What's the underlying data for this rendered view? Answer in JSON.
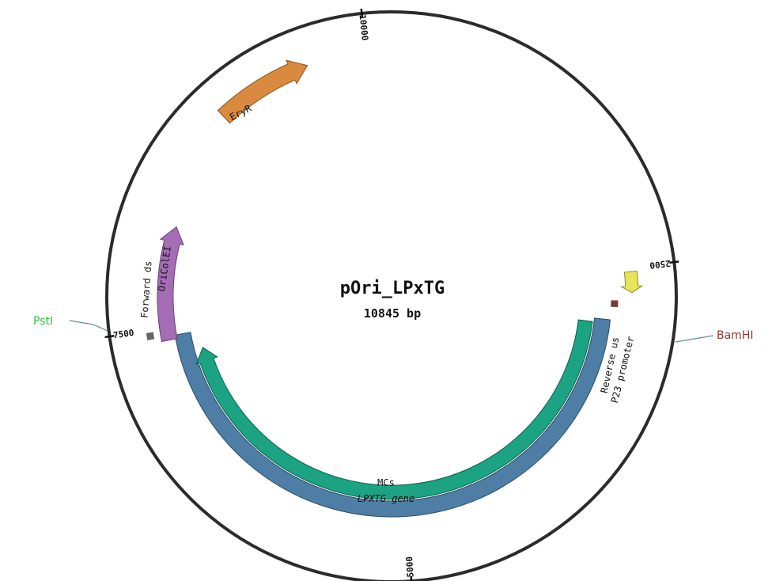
{
  "plasmid": {
    "name": "pOri_LPxTG",
    "size_label": "10845 bp",
    "length_bp": 10845
  },
  "ticks": [
    {
      "label": "2500",
      "bp": 2500
    },
    {
      "label": "5000",
      "bp": 5000
    },
    {
      "label": "7500",
      "bp": 7500
    },
    {
      "label": "10000",
      "bp": 10000
    }
  ],
  "features": [
    {
      "name": "EryR",
      "color": "#d98a3f",
      "stroke": "#8a5220",
      "lane": "outer",
      "start_deg": 317,
      "end_deg": 340,
      "arrow": "end"
    },
    {
      "name": "OriColEI",
      "color": "#a56db5",
      "stroke": "#6a3d78",
      "lane": "outer",
      "start_deg": 259,
      "end_deg": 288,
      "arrow": "end"
    },
    {
      "name": "MCs",
      "color": "#1ba384",
      "stroke": "#0e5f4c",
      "lane": "mid",
      "start_deg": 97,
      "end_deg": 255,
      "arrow": "end"
    },
    {
      "name": "LPXTG gene",
      "color": "#4e7ea5",
      "stroke": "#2b4c68",
      "lane": "inner",
      "start_deg": 96,
      "end_deg": 260,
      "arrow": "none"
    },
    {
      "name": "P23 promoter",
      "color": "#e6e45a",
      "stroke": "#8f8c1e",
      "lane": "outer",
      "start_deg": 84,
      "end_deg": 89,
      "arrow": "end"
    },
    {
      "name": "Reverse us",
      "color": "#7a3a3a",
      "stroke": "#7a3a3a",
      "lane": "primer",
      "start_deg": 91,
      "end_deg": 92.5,
      "arrow": "none"
    },
    {
      "name": "Forward ds",
      "color": "#666666",
      "stroke": "#666666",
      "lane": "primer",
      "start_deg": 260,
      "end_deg": 261.5,
      "arrow": "none"
    }
  ],
  "sites": [
    {
      "name": "PstI",
      "color": "#2ec83c"
    },
    {
      "name": "BamHI",
      "color": "#8b3a2e"
    }
  ]
}
